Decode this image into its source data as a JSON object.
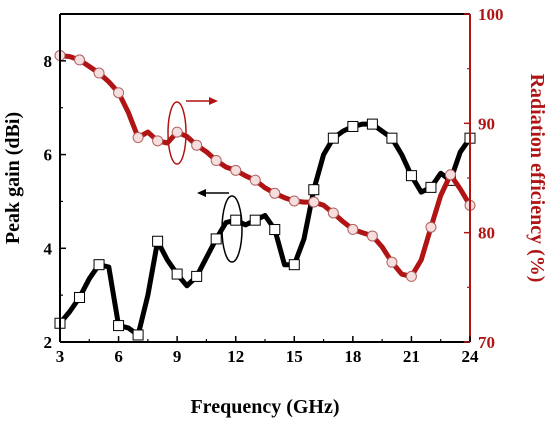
{
  "chart_data": {
    "type": "line",
    "xlabel": "Frequency (GHz)",
    "ylabel_left": "Peak gain (dBi)",
    "ylabel_right": "Radiation efficiency (%)",
    "xlim": [
      3,
      24
    ],
    "ylim_left": [
      2,
      9
    ],
    "ylim_right": [
      70,
      100
    ],
    "xticks": [
      3,
      6,
      9,
      12,
      15,
      18,
      21,
      24
    ],
    "yticks_left": [
      2,
      4,
      6,
      8
    ],
    "yticks_right": [
      70,
      80,
      90,
      100
    ],
    "grid": false,
    "colors": {
      "gain": "#000000",
      "efficiency": "#b01414",
      "right_axis": "#b01414"
    },
    "series": [
      {
        "axis": "left",
        "points": [
          [
            3,
            2.4
          ],
          [
            3.5,
            2.65
          ],
          [
            4,
            2.95
          ],
          [
            4.5,
            3.35
          ],
          [
            5,
            3.65
          ],
          [
            5.5,
            3.6
          ],
          [
            6,
            2.35
          ],
          [
            6.5,
            2.3
          ],
          [
            7,
            2.15
          ],
          [
            7.5,
            3.0
          ],
          [
            8,
            4.15
          ],
          [
            8.5,
            3.75
          ],
          [
            9,
            3.45
          ],
          [
            9.5,
            3.2
          ],
          [
            10,
            3.4
          ],
          [
            10.5,
            3.8
          ],
          [
            11,
            4.2
          ],
          [
            11.5,
            4.55
          ],
          [
            12,
            4.6
          ],
          [
            12.5,
            4.5
          ],
          [
            13,
            4.6
          ],
          [
            13.5,
            4.7
          ],
          [
            14,
            4.4
          ],
          [
            14.5,
            3.65
          ],
          [
            15,
            3.65
          ],
          [
            15.5,
            4.2
          ],
          [
            16,
            5.25
          ],
          [
            16.5,
            6.0
          ],
          [
            17,
            6.35
          ],
          [
            17.5,
            6.5
          ],
          [
            18,
            6.6
          ],
          [
            18.5,
            6.65
          ],
          [
            19,
            6.65
          ],
          [
            19.5,
            6.5
          ],
          [
            20,
            6.35
          ],
          [
            20.5,
            6.0
          ],
          [
            21,
            5.55
          ],
          [
            21.5,
            5.2
          ],
          [
            22,
            5.3
          ],
          [
            22.5,
            5.6
          ],
          [
            23,
            5.45
          ],
          [
            23.5,
            6.05
          ],
          [
            24,
            6.35
          ]
        ],
        "marker_x": [
          3,
          4,
          5,
          6,
          7,
          8,
          9,
          10,
          11,
          12,
          13,
          14,
          15,
          16,
          17,
          18,
          19,
          20,
          21,
          22,
          23,
          24
        ]
      },
      {
        "axis": "right",
        "points": [
          [
            3,
            96.2
          ],
          [
            3.5,
            96.1
          ],
          [
            4,
            95.8
          ],
          [
            4.5,
            95.2
          ],
          [
            5,
            94.6
          ],
          [
            5.5,
            93.8
          ],
          [
            6,
            92.8
          ],
          [
            6.5,
            91.0
          ],
          [
            7,
            88.7
          ],
          [
            7.5,
            89.2
          ],
          [
            8,
            88.4
          ],
          [
            8.5,
            88.2
          ],
          [
            9,
            89.2
          ],
          [
            9.5,
            88.8
          ],
          [
            10,
            88.0
          ],
          [
            10.5,
            87.4
          ],
          [
            11,
            86.6
          ],
          [
            11.5,
            86.0
          ],
          [
            12,
            85.7
          ],
          [
            12.5,
            85.2
          ],
          [
            13,
            84.8
          ],
          [
            13.5,
            84.1
          ],
          [
            14,
            83.6
          ],
          [
            14.5,
            83.2
          ],
          [
            15,
            82.9
          ],
          [
            15.5,
            82.8
          ],
          [
            16,
            82.8
          ],
          [
            16.5,
            82.5
          ],
          [
            17,
            81.8
          ],
          [
            17.5,
            81.0
          ],
          [
            18,
            80.3
          ],
          [
            18.5,
            80.0
          ],
          [
            19,
            79.7
          ],
          [
            19.5,
            78.7
          ],
          [
            20,
            77.3
          ],
          [
            20.5,
            76.2
          ],
          [
            21,
            76.0
          ],
          [
            21.5,
            77.5
          ],
          [
            22,
            80.5
          ],
          [
            22.5,
            83.4
          ],
          [
            23,
            85.3
          ],
          [
            23.5,
            84.0
          ],
          [
            24,
            82.5
          ]
        ],
        "marker_x": [
          3,
          4,
          5,
          6,
          7,
          8,
          9,
          10,
          11,
          12,
          13,
          14,
          15,
          16,
          17,
          18,
          19,
          20,
          21,
          22,
          23,
          24
        ]
      }
    ]
  }
}
